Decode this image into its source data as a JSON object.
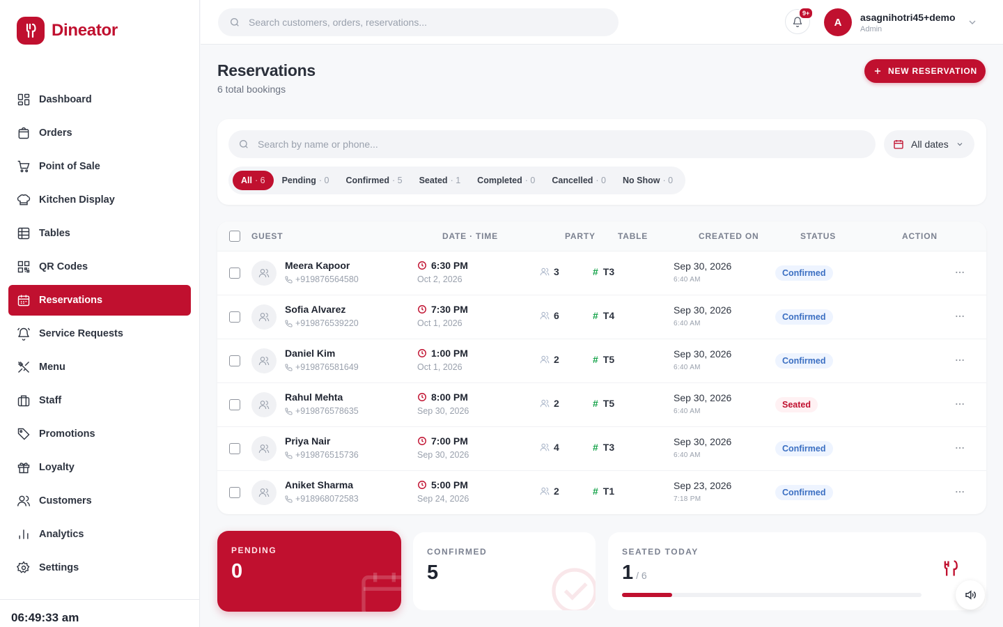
{
  "brand": {
    "name": "Dineator",
    "color": "#c0102f"
  },
  "sidebar": {
    "items": [
      {
        "label": "Dashboard",
        "icon": "grid-icon",
        "active": false
      },
      {
        "label": "Orders",
        "icon": "shopping-bag-icon",
        "active": false
      },
      {
        "label": "Point of Sale",
        "icon": "cart-icon",
        "active": false
      },
      {
        "label": "Kitchen Display",
        "icon": "chef-hat-icon",
        "active": false
      },
      {
        "label": "Tables",
        "icon": "table-icon",
        "active": false
      },
      {
        "label": "QR Codes",
        "icon": "qr-code-icon",
        "active": false
      },
      {
        "label": "Reservations",
        "icon": "calendar-icon",
        "active": true
      },
      {
        "label": "Service Requests",
        "icon": "bell-ring-icon",
        "active": false
      },
      {
        "label": "Menu",
        "icon": "utensils-icon",
        "active": false
      },
      {
        "label": "Staff",
        "icon": "briefcase-icon",
        "active": false
      },
      {
        "label": "Promotions",
        "icon": "tag-icon",
        "active": false
      },
      {
        "label": "Loyalty",
        "icon": "gift-icon",
        "active": false
      },
      {
        "label": "Customers",
        "icon": "users-icon",
        "active": false
      },
      {
        "label": "Analytics",
        "icon": "bar-chart-icon",
        "active": false
      },
      {
        "label": "Settings",
        "icon": "gear-icon",
        "active": false
      }
    ],
    "clock": "06:49:33 am"
  },
  "topbar": {
    "search_placeholder": "Search customers, orders, reservations...",
    "notifications_badge": "9+",
    "user": {
      "initial": "A",
      "name": "asagnihotri45+demo",
      "role": "Admin"
    }
  },
  "page": {
    "title": "Reservations",
    "subtitle": "6 total bookings",
    "new_button": "NEW RESERVATION"
  },
  "filters": {
    "search_placeholder": "Search by name or phone...",
    "date_filter": "All dates",
    "tabs": [
      {
        "label": "All",
        "count": "· 6",
        "active": true
      },
      {
        "label": "Pending",
        "count": "· 0",
        "active": false
      },
      {
        "label": "Confirmed",
        "count": "· 5",
        "active": false
      },
      {
        "label": "Seated",
        "count": "· 1",
        "active": false
      },
      {
        "label": "Completed",
        "count": "· 0",
        "active": false
      },
      {
        "label": "Cancelled",
        "count": "· 0",
        "active": false
      },
      {
        "label": "No Show",
        "count": "· 0",
        "active": false
      }
    ]
  },
  "table": {
    "columns": {
      "guest": "GUEST",
      "datetime": "DATE · TIME",
      "party": "PARTY",
      "table": "TABLE",
      "created": "CREATED ON",
      "status": "STATUS",
      "action": "ACTION"
    },
    "rows": [
      {
        "name": "Meera Kapoor",
        "phone": "+919876564580",
        "time": "6:30 PM",
        "date": "Oct 2, 2026",
        "party": "3",
        "table": "T3",
        "created_date": "Sep 30, 2026",
        "created_time": "6:40 AM",
        "status": "Confirmed",
        "status_type": "confirmed"
      },
      {
        "name": "Sofia Alvarez",
        "phone": "+919876539220",
        "time": "7:30 PM",
        "date": "Oct 1, 2026",
        "party": "6",
        "table": "T4",
        "created_date": "Sep 30, 2026",
        "created_time": "6:40 AM",
        "status": "Confirmed",
        "status_type": "confirmed"
      },
      {
        "name": "Daniel Kim",
        "phone": "+919876581649",
        "time": "1:00 PM",
        "date": "Oct 1, 2026",
        "party": "2",
        "table": "T5",
        "created_date": "Sep 30, 2026",
        "created_time": "6:40 AM",
        "status": "Confirmed",
        "status_type": "confirmed"
      },
      {
        "name": "Rahul Mehta",
        "phone": "+919876578635",
        "time": "8:00 PM",
        "date": "Sep 30, 2026",
        "party": "2",
        "table": "T5",
        "created_date": "Sep 30, 2026",
        "created_time": "6:40 AM",
        "status": "Seated",
        "status_type": "seated"
      },
      {
        "name": "Priya Nair",
        "phone": "+919876515736",
        "time": "7:00 PM",
        "date": "Sep 30, 2026",
        "party": "4",
        "table": "T3",
        "created_date": "Sep 30, 2026",
        "created_time": "6:40 AM",
        "status": "Confirmed",
        "status_type": "confirmed"
      },
      {
        "name": "Aniket Sharma",
        "phone": "+918968072583",
        "time": "5:00 PM",
        "date": "Sep 24, 2026",
        "party": "2",
        "table": "T1",
        "created_date": "Sep 23, 2026",
        "created_time": "7:18 PM",
        "status": "Confirmed",
        "status_type": "confirmed"
      }
    ]
  },
  "stats": {
    "pending": {
      "label": "PENDING",
      "value": "0"
    },
    "confirmed": {
      "label": "CONFIRMED",
      "value": "5"
    },
    "seated": {
      "label": "SEATED TODAY",
      "value": "1",
      "total": "/ 6",
      "progress_fraction": 0.167
    }
  }
}
